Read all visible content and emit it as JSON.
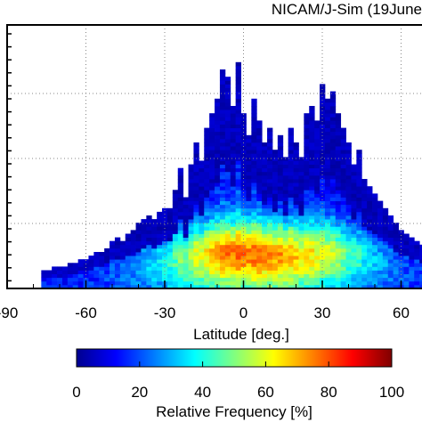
{
  "chart_data": {
    "type": "heatmap",
    "title": "NICAM/J-Sim (19June",
    "xlabel": "Latitude [deg.]",
    "x_ticks": [
      -90,
      -60,
      -30,
      0,
      30,
      60
    ],
    "x_tick_labels": [
      "-90",
      "-60",
      "-30",
      "0",
      "30",
      "60"
    ],
    "xlim": [
      -90,
      70
    ],
    "grid": true,
    "lat_bin_width_deg": 2,
    "colorbar": {
      "label": "Relative Frequency [%]",
      "range": [
        0,
        100
      ],
      "ticks": [
        0,
        20,
        40,
        60,
        80,
        100
      ],
      "tick_labels": [
        "0",
        "20",
        "40",
        "60",
        "80",
        "100"
      ],
      "colormap": [
        "#00008f",
        "#0000ff",
        "#0080ff",
        "#00ffff",
        "#80ff80",
        "#ffff00",
        "#ff8000",
        "#ff0000",
        "#800000"
      ]
    },
    "column_heights_rows": [
      {
        "lat": -76,
        "rows": 5
      },
      {
        "lat": -74,
        "rows": 5
      },
      {
        "lat": -72,
        "rows": 6
      },
      {
        "lat": -70,
        "rows": 6
      },
      {
        "lat": -68,
        "rows": 6
      },
      {
        "lat": -66,
        "rows": 7
      },
      {
        "lat": -64,
        "rows": 7
      },
      {
        "lat": -62,
        "rows": 8
      },
      {
        "lat": -60,
        "rows": 8
      },
      {
        "lat": -58,
        "rows": 9
      },
      {
        "lat": -56,
        "rows": 10
      },
      {
        "lat": -54,
        "rows": 10
      },
      {
        "lat": -52,
        "rows": 11
      },
      {
        "lat": -50,
        "rows": 13
      },
      {
        "lat": -48,
        "rows": 14
      },
      {
        "lat": -46,
        "rows": 13
      },
      {
        "lat": -44,
        "rows": 15
      },
      {
        "lat": -42,
        "rows": 16
      },
      {
        "lat": -40,
        "rows": 18
      },
      {
        "lat": -38,
        "rows": 19
      },
      {
        "lat": -36,
        "rows": 20
      },
      {
        "lat": -34,
        "rows": 19
      },
      {
        "lat": -32,
        "rows": 21
      },
      {
        "lat": -30,
        "rows": 22
      },
      {
        "lat": -28,
        "rows": 22
      },
      {
        "lat": -26,
        "rows": 27
      },
      {
        "lat": -24,
        "rows": 33
      },
      {
        "lat": -22,
        "rows": 25
      },
      {
        "lat": -20,
        "rows": 34
      },
      {
        "lat": -18,
        "rows": 40
      },
      {
        "lat": -16,
        "rows": 35
      },
      {
        "lat": -14,
        "rows": 44
      },
      {
        "lat": -12,
        "rows": 48
      },
      {
        "lat": -10,
        "rows": 52
      },
      {
        "lat": -8,
        "rows": 60
      },
      {
        "lat": -6,
        "rows": 58
      },
      {
        "lat": -4,
        "rows": 50
      },
      {
        "lat": -2,
        "rows": 62
      },
      {
        "lat": 0,
        "rows": 48
      },
      {
        "lat": 2,
        "rows": 42
      },
      {
        "lat": 4,
        "rows": 52
      },
      {
        "lat": 6,
        "rows": 46
      },
      {
        "lat": 8,
        "rows": 40
      },
      {
        "lat": 10,
        "rows": 44
      },
      {
        "lat": 12,
        "rows": 38
      },
      {
        "lat": 14,
        "rows": 42
      },
      {
        "lat": 16,
        "rows": 36
      },
      {
        "lat": 18,
        "rows": 44
      },
      {
        "lat": 20,
        "rows": 40
      },
      {
        "lat": 22,
        "rows": 36
      },
      {
        "lat": 24,
        "rows": 48
      },
      {
        "lat": 26,
        "rows": 50
      },
      {
        "lat": 28,
        "rows": 46
      },
      {
        "lat": 30,
        "rows": 56
      },
      {
        "lat": 32,
        "rows": 52
      },
      {
        "lat": 34,
        "rows": 54
      },
      {
        "lat": 36,
        "rows": 48
      },
      {
        "lat": 38,
        "rows": 44
      },
      {
        "lat": 40,
        "rows": 40
      },
      {
        "lat": 42,
        "rows": 34
      },
      {
        "lat": 44,
        "rows": 38
      },
      {
        "lat": 46,
        "rows": 30
      },
      {
        "lat": 48,
        "rows": 28
      },
      {
        "lat": 50,
        "rows": 26
      },
      {
        "lat": 52,
        "rows": 24
      },
      {
        "lat": 54,
        "rows": 22
      },
      {
        "lat": 56,
        "rows": 20
      },
      {
        "lat": 58,
        "rows": 18
      },
      {
        "lat": 60,
        "rows": 16
      },
      {
        "lat": 62,
        "rows": 15
      },
      {
        "lat": 64,
        "rows": 14
      },
      {
        "lat": 66,
        "rows": 13
      },
      {
        "lat": 68,
        "rows": 12
      }
    ]
  }
}
